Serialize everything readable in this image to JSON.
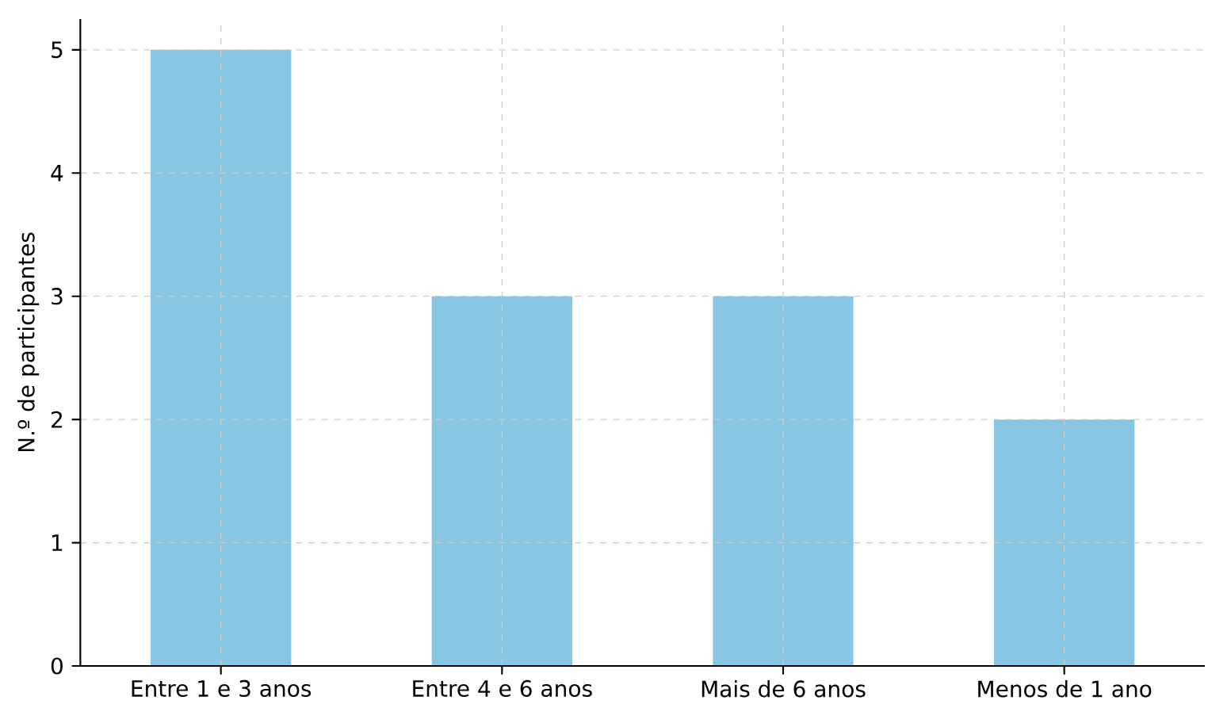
{
  "chart_data": {
    "type": "bar",
    "ylabel": "N.º de participantes",
    "categories": [
      "Entre 1 e 3 anos",
      "Entre 4 e 6 anos",
      "Mais de 6 anos",
      "Menos de 1 ano"
    ],
    "values": [
      5,
      3,
      3,
      2
    ],
    "color": "#87c5e3",
    "ylim": [
      0,
      5.25
    ],
    "yticks": [
      0,
      1,
      2,
      3,
      4,
      5
    ],
    "grid": true
  }
}
